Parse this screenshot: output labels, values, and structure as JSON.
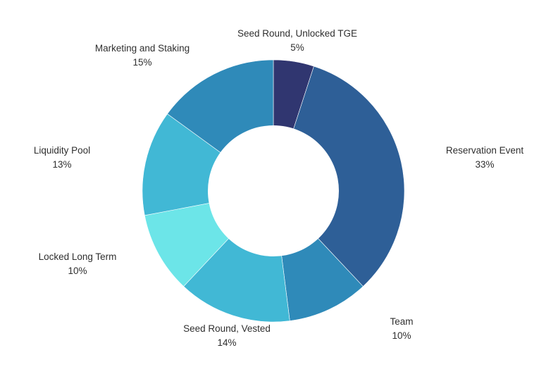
{
  "chart_data": {
    "type": "pie",
    "style": "donut",
    "legend": "none",
    "slices": [
      {
        "label": "Seed Round, Unlocked TGE",
        "value": 5,
        "value_label": "5%",
        "color": "#303670"
      },
      {
        "label": "Reservation Event",
        "value": 33,
        "value_label": "33%",
        "color": "#2e5f97"
      },
      {
        "label": "Team",
        "value": 10,
        "value_label": "10%",
        "color": "#2f8ab9"
      },
      {
        "label": "Seed Round, Vested",
        "value": 14,
        "value_label": "14%",
        "color": "#41b8d5"
      },
      {
        "label": "Locked Long Term",
        "value": 10,
        "value_label": "10%",
        "color": "#6ce5e8"
      },
      {
        "label": "Liquidity Pool",
        "value": 13,
        "value_label": "13%",
        "color": "#41b8d5"
      },
      {
        "label": "Marketing and Staking",
        "value": 15,
        "value_label": "15%",
        "color": "#2f8ab9"
      }
    ]
  }
}
